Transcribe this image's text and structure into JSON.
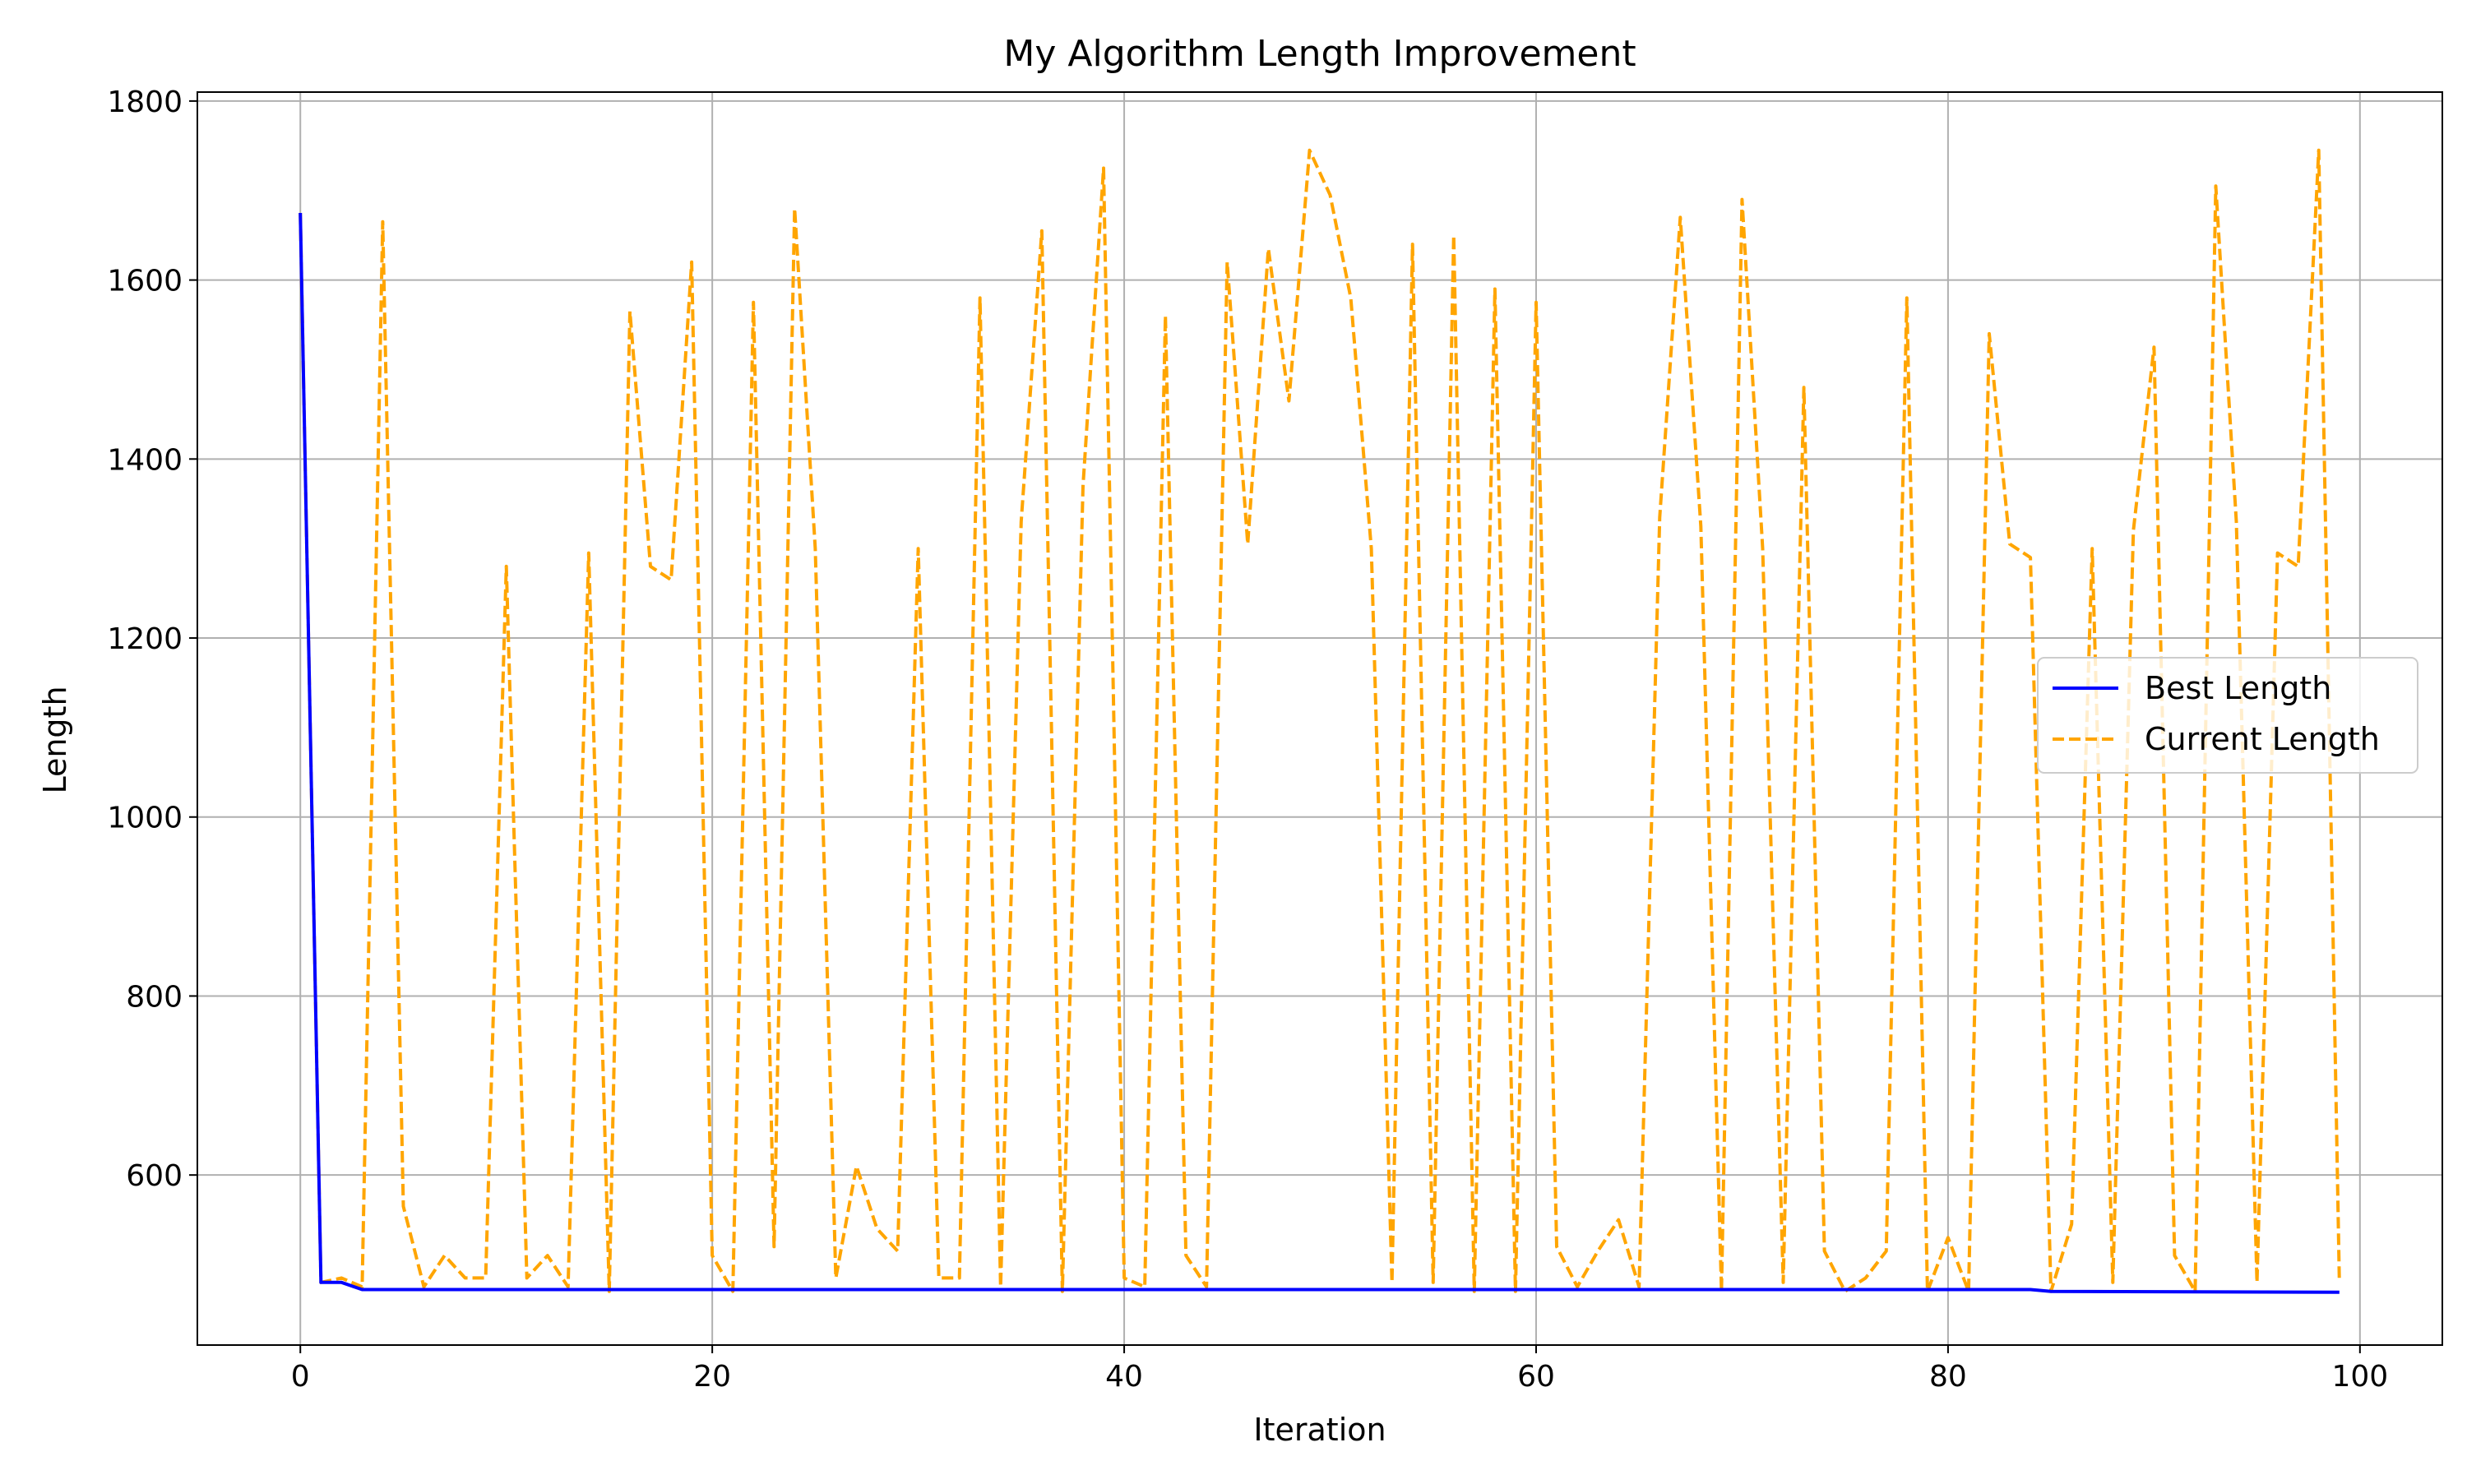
{
  "chart_data": {
    "type": "line",
    "title": "My Algorithm Length Improvement",
    "xlabel": "Iteration",
    "ylabel": "Length",
    "xlim": [
      -5,
      104
    ],
    "ylim": [
      410,
      1810
    ],
    "xticks": [
      0,
      20,
      40,
      60,
      80,
      100
    ],
    "yticks": [
      600,
      800,
      1000,
      1200,
      1400,
      1600,
      1800
    ],
    "grid": true,
    "legend": "center-right",
    "series": [
      {
        "name": "Best Length",
        "color": "#0000ff",
        "dash": "solid",
        "x": [
          0,
          1,
          2,
          3,
          84,
          85,
          99
        ],
        "y": [
          1675,
          480,
          480,
          472,
          472,
          470,
          469
        ]
      },
      {
        "name": "Current Length",
        "color": "#ffa500",
        "dash": "dashed",
        "x": [
          0,
          1,
          2,
          3,
          4,
          5,
          6,
          7,
          8,
          9,
          10,
          11,
          12,
          13,
          14,
          15,
          16,
          17,
          18,
          19,
          20,
          21,
          22,
          23,
          24,
          25,
          26,
          27,
          28,
          29,
          30,
          31,
          32,
          33,
          34,
          35,
          36,
          37,
          38,
          39,
          40,
          41,
          42,
          43,
          44,
          45,
          46,
          47,
          48,
          49,
          50,
          51,
          52,
          53,
          54,
          55,
          56,
          57,
          58,
          59,
          60,
          61,
          62,
          63,
          64,
          65,
          66,
          67,
          68,
          69,
          70,
          71,
          72,
          73,
          74,
          75,
          76,
          77,
          78,
          79,
          80,
          81,
          82,
          83,
          84,
          85,
          86,
          87,
          88,
          89,
          90,
          91,
          92,
          93,
          94,
          95,
          96,
          97,
          98,
          99
        ],
        "y": [
          1675,
          480,
          485,
          475,
          1665,
          565,
          475,
          510,
          485,
          485,
          1280,
          485,
          510,
          475,
          1295,
          470,
          1565,
          1280,
          1265,
          1620,
          510,
          470,
          1575,
          520,
          1680,
          1300,
          485,
          610,
          540,
          515,
          1300,
          485,
          485,
          1580,
          475,
          1330,
          1655,
          470,
          1370,
          1725,
          485,
          475,
          1560,
          510,
          475,
          1620,
          1305,
          1635,
          1465,
          1745,
          1695,
          1580,
          1300,
          480,
          1640,
          480,
          1650,
          470,
          1590,
          470,
          1575,
          520,
          475,
          515,
          550,
          475,
          1335,
          1670,
          1325,
          470,
          1690,
          1300,
          480,
          1480,
          515,
          470,
          485,
          515,
          1580,
          470,
          530,
          470,
          1540,
          1305,
          1290,
          470,
          545,
          1300,
          480,
          1320,
          1525,
          510,
          470,
          1705,
          1330,
          480,
          1295,
          1280,
          1745,
          480
        ]
      }
    ]
  }
}
